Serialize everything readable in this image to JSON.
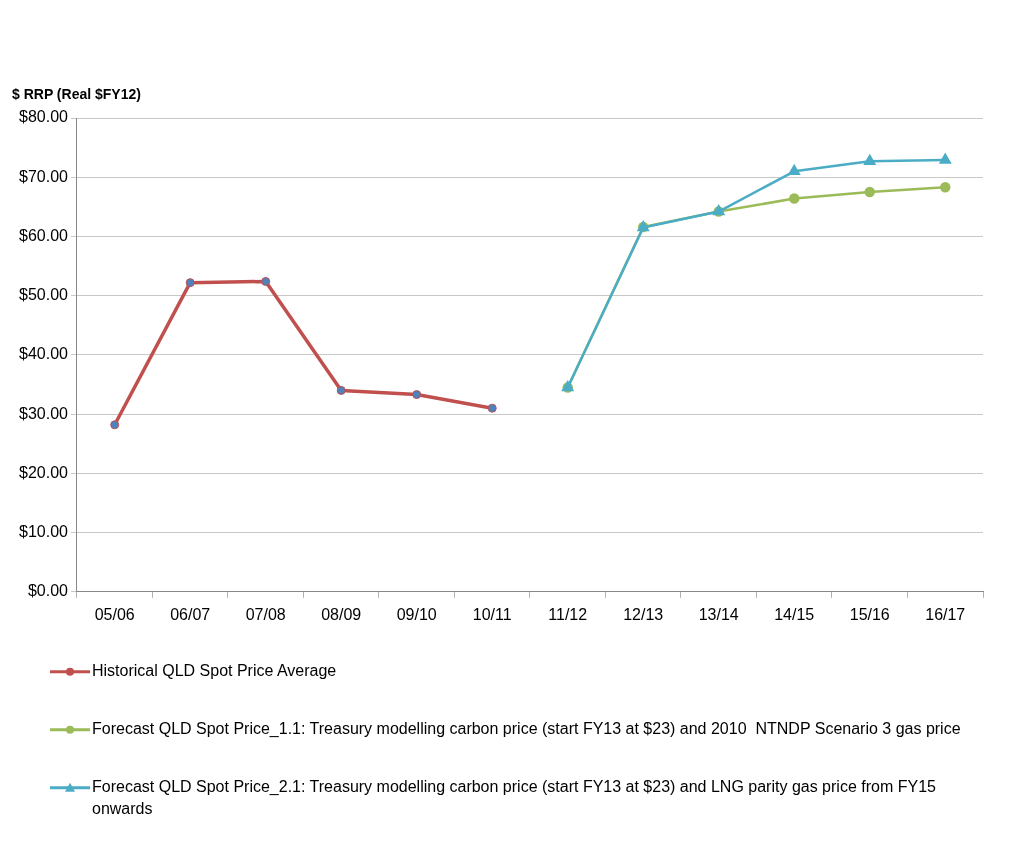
{
  "chart_data": {
    "type": "line",
    "ylabel": "$ RRP (Real $FY12)",
    "categories": [
      "05/06",
      "06/07",
      "07/08",
      "08/09",
      "09/10",
      "10/11",
      "11/12",
      "12/13",
      "13/14",
      "14/15",
      "15/16",
      "16/17"
    ],
    "series": [
      {
        "name": "Historical QLD Spot Price Average",
        "color": "#c0504d",
        "marker": "circle",
        "values": [
          28.2,
          52.2,
          52.4,
          34.0,
          33.3,
          31.0,
          null,
          null,
          null,
          null,
          null,
          null
        ]
      },
      {
        "name": "Forecast QLD Spot Price_1.1: Treasury modelling carbon price (start FY13 at $23) and 2010  NTNDP Scenario 3 gas price",
        "color": "#9bbb59",
        "marker": "circle",
        "values": [
          null,
          null,
          null,
          null,
          null,
          null,
          34.5,
          61.6,
          64.2,
          66.4,
          67.5,
          68.3
        ]
      },
      {
        "name": "Forecast QLD Spot Price_2.1: Treasury modelling carbon price (start FY13 at $23) and LNG parity gas price from FY15 onwards",
        "color": "#4bacc6",
        "marker": "triangle",
        "values": [
          null,
          null,
          null,
          null,
          null,
          null,
          34.5,
          61.5,
          64.2,
          71.0,
          72.7,
          72.9
        ]
      }
    ],
    "ylim": [
      0,
      80
    ],
    "yticks": [
      {
        "value": 0,
        "label": "$0.00"
      },
      {
        "value": 10,
        "label": "$10.00"
      },
      {
        "value": 20,
        "label": "$20.00"
      },
      {
        "value": 30,
        "label": "$30.00"
      },
      {
        "value": 40,
        "label": "$40.00"
      },
      {
        "value": 50,
        "label": "$50.00"
      },
      {
        "value": 60,
        "label": "$60.00"
      },
      {
        "value": 70,
        "label": "$70.00"
      },
      {
        "value": 80,
        "label": "$80.00"
      }
    ],
    "grid": "y",
    "legend": "bottom",
    "line_style": "solid"
  }
}
